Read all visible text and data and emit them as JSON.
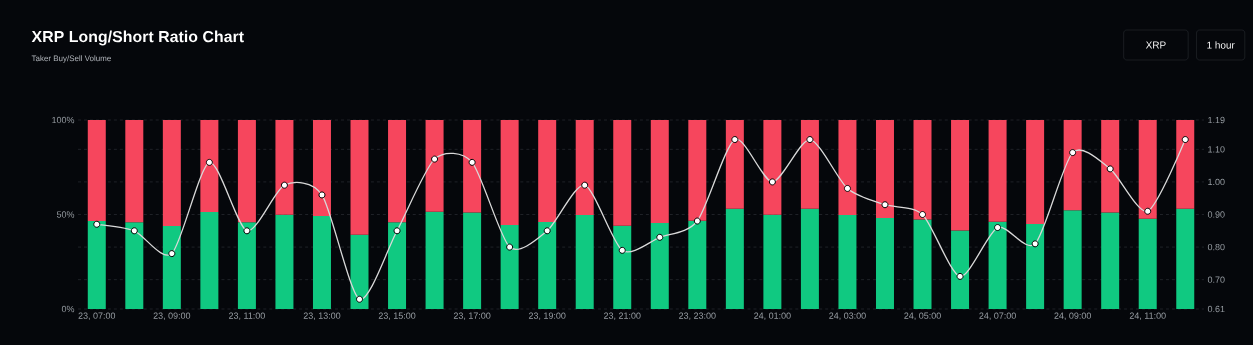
{
  "chart_data": {
    "type": "bar",
    "title": "XRP Long/Short Ratio Chart",
    "subtitle": "Taker Buy/Sell Volume",
    "annotations": [
      "XRP",
      "1 hour"
    ],
    "stacked": true,
    "categories": [
      "23, 07:00",
      null,
      "23, 09:00",
      null,
      "23, 11:00",
      null,
      "23, 13:00",
      null,
      "23, 15:00",
      null,
      "23, 17:00",
      null,
      "23, 19:00",
      null,
      "23, 21:00",
      null,
      "23, 23:00",
      null,
      "24, 01:00",
      null,
      "24, 03:00",
      null,
      "24, 05:00",
      null,
      "24, 07:00",
      null,
      "24, 09:00",
      null,
      "24, 11:00",
      null
    ],
    "series": [
      {
        "color": "#10c981",
        "values": [
          46.6,
          45.9,
          43.9,
          51.3,
          45.9,
          49.9,
          49.2,
          39.3,
          45.9,
          51.5,
          51.1,
          44.4,
          46.0,
          49.7,
          44.1,
          45.5,
          46.7,
          53.1,
          49.9,
          53.1,
          49.7,
          48.1,
          47.4,
          41.6,
          46.2,
          45.0,
          52.2,
          51.1,
          47.8,
          53.1
        ]
      },
      {
        "color": "#f6465d",
        "values": [
          53.4,
          54.1,
          56.1,
          48.7,
          54.1,
          50.1,
          50.8,
          60.7,
          54.1,
          48.5,
          48.9,
          55.6,
          54.0,
          50.3,
          55.9,
          54.5,
          53.3,
          46.9,
          50.1,
          46.9,
          50.3,
          51.9,
          52.6,
          58.4,
          53.8,
          55.0,
          47.8,
          48.9,
          52.2,
          46.9
        ]
      },
      {
        "type": "line",
        "axis": "y2",
        "color": "#d9d9d9",
        "values": [
          0.87,
          0.85,
          0.78,
          1.06,
          0.85,
          0.99,
          0.96,
          0.64,
          0.85,
          1.07,
          1.06,
          0.8,
          0.85,
          0.99,
          0.79,
          0.83,
          0.88,
          1.13,
          1.0,
          1.13,
          0.98,
          0.93,
          0.9,
          0.71,
          0.86,
          0.81,
          1.09,
          1.04,
          0.91,
          1.13
        ]
      }
    ],
    "ylim": [
      0,
      100
    ],
    "yticks": [
      {
        "value": 0,
        "label": "0%"
      },
      {
        "value": 50,
        "label": "50%"
      },
      {
        "value": 100,
        "label": "100%"
      }
    ],
    "y2lim": [
      0.61,
      1.19
    ],
    "y2ticks": [
      0.61,
      {
        "value": 0.7,
        "label": "0.70"
      },
      {
        "value": 0.8,
        "label": "0.80"
      },
      {
        "value": 0.9,
        "label": "0.90"
      },
      {
        "value": 1.0,
        "label": "1.00"
      },
      {
        "value": 1.1,
        "label": "1.10"
      },
      1.19
    ],
    "grid": "y",
    "marker": "circle",
    "line_style": "solid"
  }
}
